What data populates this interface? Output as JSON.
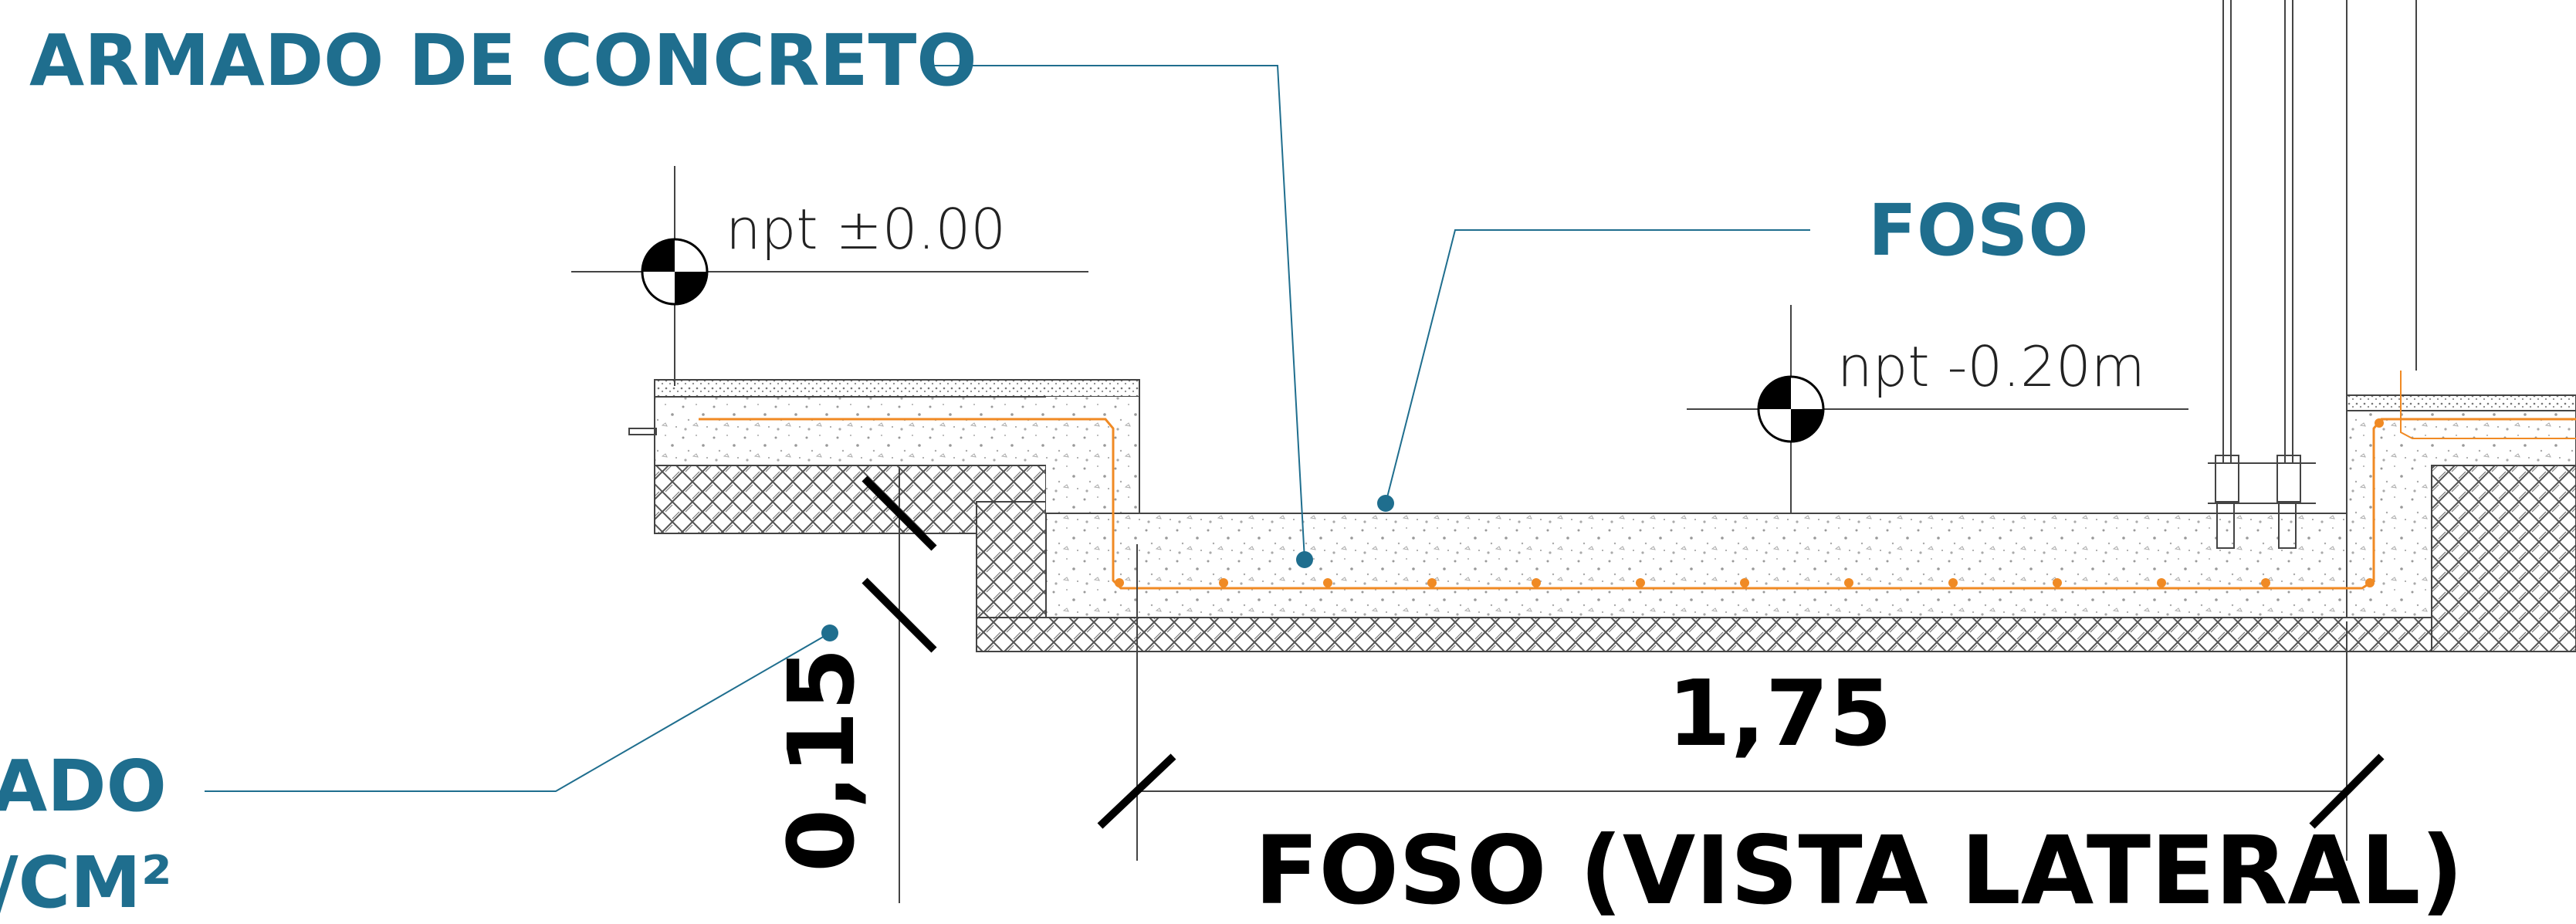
{
  "labels": {
    "armado_concreto": "ARMADO DE CONCRETO",
    "foso": "FOSO",
    "left_cut_line1": "ADO",
    "left_cut_line2": "/CM²",
    "level_top": "npt ±0.00",
    "level_pit": "npt -0.20m",
    "dim_width": "1,75",
    "dim_depth": "0,15",
    "title": "FOSO (VISTA LATERAL)"
  },
  "colors": {
    "label_blue": "#1f6e8e",
    "rebar_orange": "#f08a24",
    "line_dark": "#000000",
    "line_grey": "#444444"
  }
}
